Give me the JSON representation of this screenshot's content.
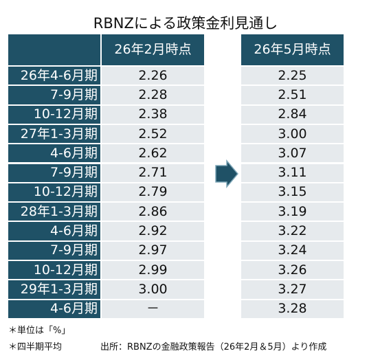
{
  "title": "RBNZによる政策金利見通し",
  "table": {
    "headers": [
      "26年2月時点",
      "26年5月時点"
    ],
    "rows": [
      [
        "26年4-6月期",
        "2.26",
        "2.25"
      ],
      [
        "7-9月期",
        "2.28",
        "2.51"
      ],
      [
        "10-12月期",
        "2.38",
        "2.84"
      ],
      [
        "27年1-3月期",
        "2.52",
        "3.00"
      ],
      [
        "4-6月期",
        "2.62",
        "3.07"
      ],
      [
        "7-9月期",
        "2.71",
        "3.11"
      ],
      [
        "10-12月期",
        "2.79",
        "3.15"
      ],
      [
        "28年1-3月期",
        "2.86",
        "3.19"
      ],
      [
        "4-6月期",
        "2.92",
        "3.22"
      ],
      [
        "7-9月期",
        "2.97",
        "3.24"
      ],
      [
        "10-12月期",
        "2.99",
        "3.26"
      ],
      [
        "29年1-3月期",
        "3.00",
        "3.27"
      ],
      [
        "4-6月期",
        "－",
        "3.28"
      ]
    ]
  },
  "notes": [
    "＊単位は「%」",
    "＊四半期平均"
  ],
  "source": "出所：RBNZの金融政策報告（26年2月＆5月）より作成"
}
